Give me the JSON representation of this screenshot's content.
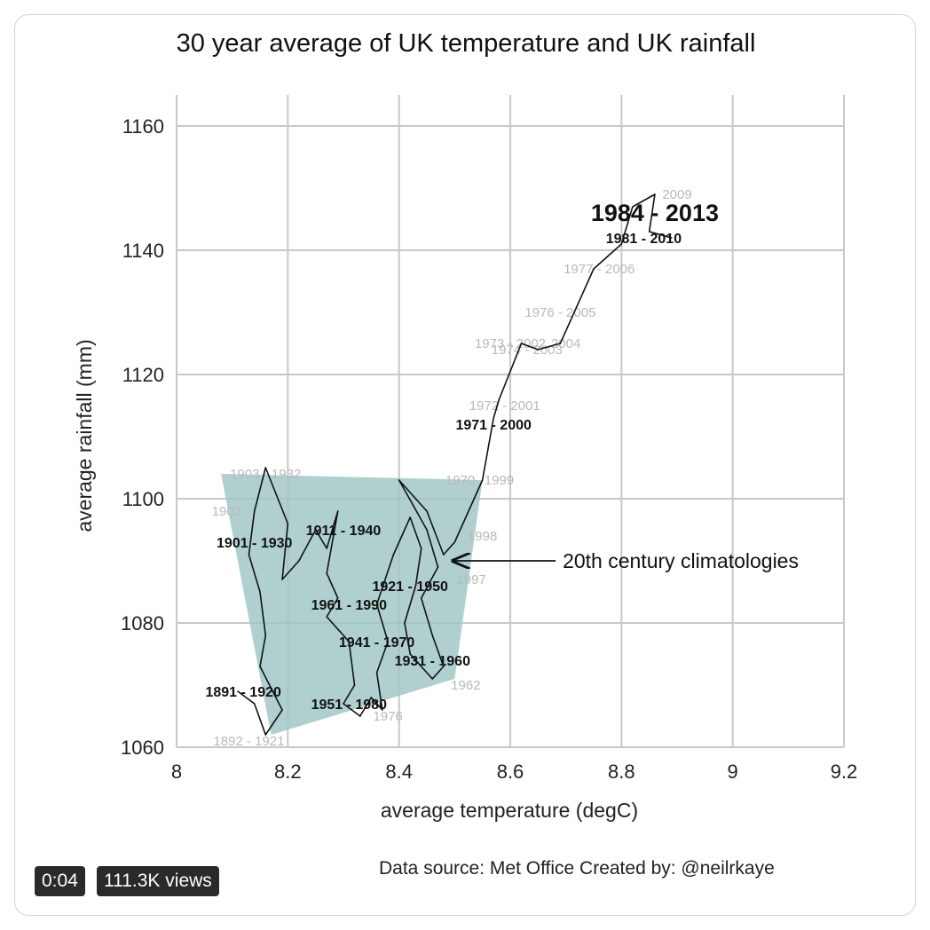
{
  "chart_data": {
    "type": "line",
    "title": "30 year average of UK temperature and UK rainfall",
    "xlabel": "average temperature (degC)",
    "ylabel": "average rainfall (mm)",
    "xlim": [
      8,
      9.2
    ],
    "ylim": [
      1060,
      1165
    ],
    "x_ticks": [
      8,
      8.2,
      8.4,
      8.6,
      8.8,
      9,
      9.2
    ],
    "x_tick_labels": [
      "8",
      "8.2",
      "8.4",
      "8.6",
      "8.8",
      "9",
      "9.2"
    ],
    "y_ticks": [
      1060,
      1080,
      1100,
      1120,
      1140,
      1160
    ],
    "y_tick_labels": [
      "1060",
      "1080",
      "1100",
      "1120",
      "1140",
      "1160"
    ],
    "grid": true,
    "series": [
      {
        "values": [
          {
            "x": 8.11,
            "y": 1069
          },
          {
            "x": 8.14,
            "y": 1067
          },
          {
            "x": 8.16,
            "y": 1062
          },
          {
            "x": 8.19,
            "y": 1066
          },
          {
            "x": 8.15,
            "y": 1073
          },
          {
            "x": 8.16,
            "y": 1078
          },
          {
            "x": 8.15,
            "y": 1085
          },
          {
            "x": 8.13,
            "y": 1091
          },
          {
            "x": 8.14,
            "y": 1098
          },
          {
            "x": 8.16,
            "y": 1105
          },
          {
            "x": 8.2,
            "y": 1096
          },
          {
            "x": 8.19,
            "y": 1087
          },
          {
            "x": 8.22,
            "y": 1090
          },
          {
            "x": 8.25,
            "y": 1095
          },
          {
            "x": 8.27,
            "y": 1092
          },
          {
            "x": 8.29,
            "y": 1098
          },
          {
            "x": 8.27,
            "y": 1088
          },
          {
            "x": 8.29,
            "y": 1084
          },
          {
            "x": 8.27,
            "y": 1081
          },
          {
            "x": 8.31,
            "y": 1077
          },
          {
            "x": 8.32,
            "y": 1070
          },
          {
            "x": 8.3,
            "y": 1067
          },
          {
            "x": 8.33,
            "y": 1065
          },
          {
            "x": 8.35,
            "y": 1068
          },
          {
            "x": 8.37,
            "y": 1066
          },
          {
            "x": 8.36,
            "y": 1072
          },
          {
            "x": 8.38,
            "y": 1077
          },
          {
            "x": 8.36,
            "y": 1083
          },
          {
            "x": 8.39,
            "y": 1091
          },
          {
            "x": 8.42,
            "y": 1097
          },
          {
            "x": 8.44,
            "y": 1092
          },
          {
            "x": 8.43,
            "y": 1086
          },
          {
            "x": 8.41,
            "y": 1080
          },
          {
            "x": 8.42,
            "y": 1075
          },
          {
            "x": 8.46,
            "y": 1071
          },
          {
            "x": 8.48,
            "y": 1073
          },
          {
            "x": 8.46,
            "y": 1078
          },
          {
            "x": 8.44,
            "y": 1084
          },
          {
            "x": 8.47,
            "y": 1089
          },
          {
            "x": 8.45,
            "y": 1095
          },
          {
            "x": 8.4,
            "y": 1103
          },
          {
            "x": 8.45,
            "y": 1098
          },
          {
            "x": 8.48,
            "y": 1091
          },
          {
            "x": 8.5,
            "y": 1093
          },
          {
            "x": 8.55,
            "y": 1103
          },
          {
            "x": 8.57,
            "y": 1113
          },
          {
            "x": 8.58,
            "y": 1116
          },
          {
            "x": 8.62,
            "y": 1125
          },
          {
            "x": 8.65,
            "y": 1124
          },
          {
            "x": 8.69,
            "y": 1125
          },
          {
            "x": 8.75,
            "y": 1137
          },
          {
            "x": 8.8,
            "y": 1141
          },
          {
            "x": 8.82,
            "y": 1147
          },
          {
            "x": 8.86,
            "y": 1149
          },
          {
            "x": 8.85,
            "y": 1143
          },
          {
            "x": 8.89,
            "y": 1142
          }
        ]
      }
    ],
    "shaded_region": {
      "label": "20th century climatologies",
      "vertices": [
        {
          "x": 8.08,
          "y": 1104
        },
        {
          "x": 8.55,
          "y": 1103
        },
        {
          "x": 8.5,
          "y": 1071
        },
        {
          "x": 8.17,
          "y": 1062
        }
      ],
      "color": "#9fc6c6"
    },
    "labels": [
      {
        "text": "1891 - 1920",
        "x": 8.12,
        "y": 1069,
        "emphasis": "bold"
      },
      {
        "text": "1901 - 1930",
        "x": 8.14,
        "y": 1093,
        "emphasis": "bold"
      },
      {
        "text": "1911 - 1940",
        "x": 8.3,
        "y": 1095,
        "emphasis": "bold"
      },
      {
        "text": "1921 - 1950",
        "x": 8.42,
        "y": 1086,
        "emphasis": "bold"
      },
      {
        "text": "1931 - 1960",
        "x": 8.46,
        "y": 1074,
        "emphasis": "bold"
      },
      {
        "text": "1941 - 1970",
        "x": 8.36,
        "y": 1077,
        "emphasis": "bold"
      },
      {
        "text": "1951 - 1980",
        "x": 8.31,
        "y": 1067,
        "emphasis": "bold"
      },
      {
        "text": "1961 - 1990",
        "x": 8.31,
        "y": 1083,
        "emphasis": "bold"
      },
      {
        "text": "1971 - 2000",
        "x": 8.57,
        "y": 1112,
        "emphasis": "bold"
      },
      {
        "text": "1981 - 2010",
        "x": 8.84,
        "y": 1142,
        "emphasis": "bold"
      },
      {
        "text": "1984 - 2013",
        "x": 8.86,
        "y": 1146,
        "emphasis": "large"
      },
      {
        "text": "1903 - 1932",
        "x": 8.16,
        "y": 1104,
        "emphasis": "faded"
      },
      {
        "text": "1902",
        "x": 8.09,
        "y": 1098,
        "emphasis": "faded"
      },
      {
        "text": "1892 - 1921",
        "x": 8.13,
        "y": 1061,
        "emphasis": "faded"
      },
      {
        "text": "1972 - 2001",
        "x": 8.59,
        "y": 1115,
        "emphasis": "faded"
      },
      {
        "text": "1973 - 2002",
        "x": 8.6,
        "y": 1125,
        "emphasis": "faded"
      },
      {
        "text": "1974 - 2003",
        "x": 8.63,
        "y": 1124,
        "emphasis": "faded"
      },
      {
        "text": "2004",
        "x": 8.7,
        "y": 1125,
        "emphasis": "faded"
      },
      {
        "text": "1976 - 2005",
        "x": 8.69,
        "y": 1130,
        "emphasis": "faded"
      },
      {
        "text": "1977 - 2006",
        "x": 8.76,
        "y": 1137,
        "emphasis": "faded"
      },
      {
        "text": "1999",
        "x": 8.58,
        "y": 1103,
        "emphasis": "faded"
      },
      {
        "text": "1998",
        "x": 8.55,
        "y": 1094,
        "emphasis": "faded"
      },
      {
        "text": "1997",
        "x": 8.53,
        "y": 1087,
        "emphasis": "faded"
      },
      {
        "text": "1962",
        "x": 8.52,
        "y": 1070,
        "emphasis": "faded"
      },
      {
        "text": "1976",
        "x": 8.38,
        "y": 1065,
        "emphasis": "faded"
      },
      {
        "text": "1970",
        "x": 8.51,
        "y": 1103,
        "emphasis": "faded"
      },
      {
        "text": "2009",
        "x": 8.9,
        "y": 1149,
        "emphasis": "faded"
      }
    ],
    "annotations": [
      {
        "text": "20th century climatologies",
        "arrow_to": {
          "x": 8.49,
          "y": 1090
        }
      }
    ]
  },
  "footer": {
    "source_text": "Data source: Met Office  Created by: @neilrkaye"
  },
  "video": {
    "time": "0:04",
    "views": "111.3K views"
  }
}
